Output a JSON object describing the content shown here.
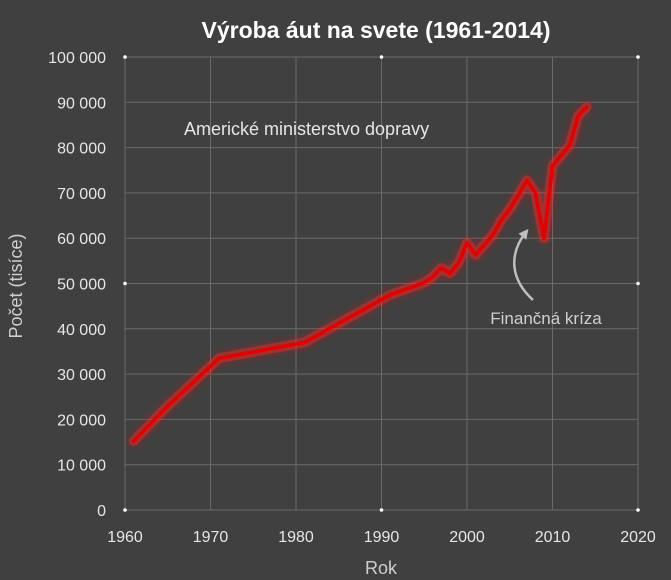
{
  "chart_data": {
    "type": "line",
    "title": "Výroba áut na svete (1961-2014)",
    "xlabel": "Rok",
    "ylabel": "Počet (tisíce)",
    "xlim": [
      1960,
      2020
    ],
    "ylim": [
      0,
      100000
    ],
    "x_ticks": [
      "1960",
      "1970",
      "1980",
      "1990",
      "2000",
      "2010",
      "2020"
    ],
    "y_ticks": [
      "0",
      "10 000",
      "20 000",
      "30 000",
      "40 000",
      "50 000",
      "60 000",
      "70 000",
      "80 000",
      "90 000",
      "100 000"
    ],
    "grid": true,
    "legend_position": "top-left",
    "colors": {
      "background": "#404040",
      "grid": "#6a6a6a",
      "line": "#e00000",
      "glow": "#ff2020",
      "arrow": "#bfbfbf"
    },
    "series": [
      {
        "name": "Americké ministerstvo dopravy",
        "x": [
          1961,
          1965,
          1971,
          1981,
          1991,
          1995,
          1996,
          1997,
          1998,
          1999,
          2000,
          2001,
          2003,
          2004,
          2005,
          2006,
          2007,
          2008,
          2009,
          2010,
          2012,
          2013,
          2014
        ],
        "y": [
          15200,
          23000,
          33500,
          37000,
          47500,
          50200,
          51500,
          53500,
          52200,
          54500,
          59000,
          56300,
          60700,
          64000,
          66500,
          69500,
          72800,
          70000,
          60000,
          76000,
          80500,
          87000,
          89000
        ]
      }
    ],
    "annotations": [
      {
        "text": "Finančná kríza",
        "x": 2008.5,
        "y": 63000
      }
    ]
  }
}
